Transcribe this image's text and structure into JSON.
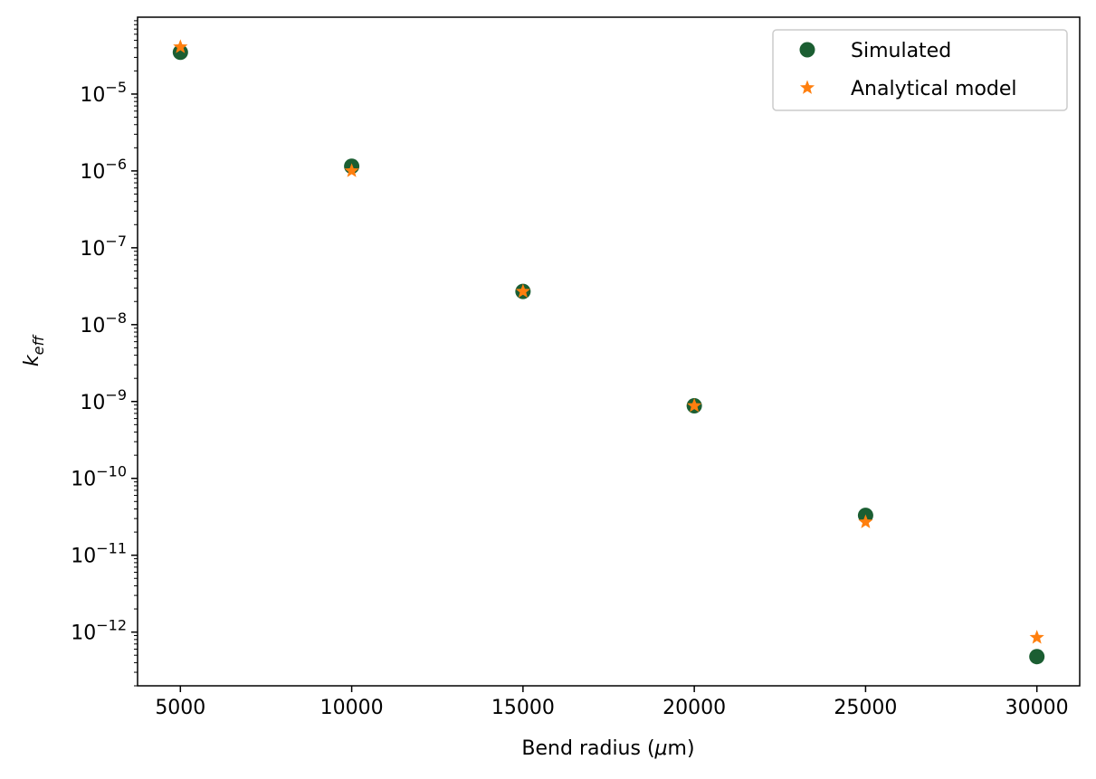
{
  "chart_data": {
    "type": "scatter",
    "xlabel": "Bend radius (",
    "xlabel_mu": "μ",
    "xlabel_unit": "m)",
    "ylabel_base": "k",
    "ylabel_sub": "eff",
    "yscale": "log",
    "x_ticks": [
      5000,
      10000,
      15000,
      20000,
      25000,
      30000
    ],
    "x_tick_labels": [
      "5000",
      "10000",
      "15000",
      "20000",
      "25000",
      "30000"
    ],
    "y_tick_exponents": [
      -12,
      -11,
      -10,
      -9,
      -8,
      -7,
      -6,
      -5
    ],
    "y_tick_base": "10",
    "y_tick_exp_labels": [
      "−12",
      "−11",
      "−10",
      "−9",
      "−8",
      "−7",
      "−6",
      "−5"
    ],
    "xlim": [
      3750,
      31250
    ],
    "ylim": [
      2e-13,
      0.0001
    ],
    "legend_position": "upper right",
    "series": [
      {
        "name": "Simulated",
        "marker": "circle",
        "color": "#1b5e32",
        "x": [
          5000,
          10000,
          15000,
          20000,
          25000,
          30000
        ],
        "y": [
          3.5e-05,
          1.15e-06,
          2.7e-08,
          8.8e-10,
          3.3e-11,
          4.8e-13
        ]
      },
      {
        "name": "Analytical model",
        "marker": "star",
        "color": "#ff7f0e",
        "x": [
          5000,
          10000,
          15000,
          20000,
          25000,
          30000
        ],
        "y": [
          4.1e-05,
          1e-06,
          2.7e-08,
          8.8e-10,
          2.7e-11,
          8.5e-13
        ]
      }
    ]
  }
}
